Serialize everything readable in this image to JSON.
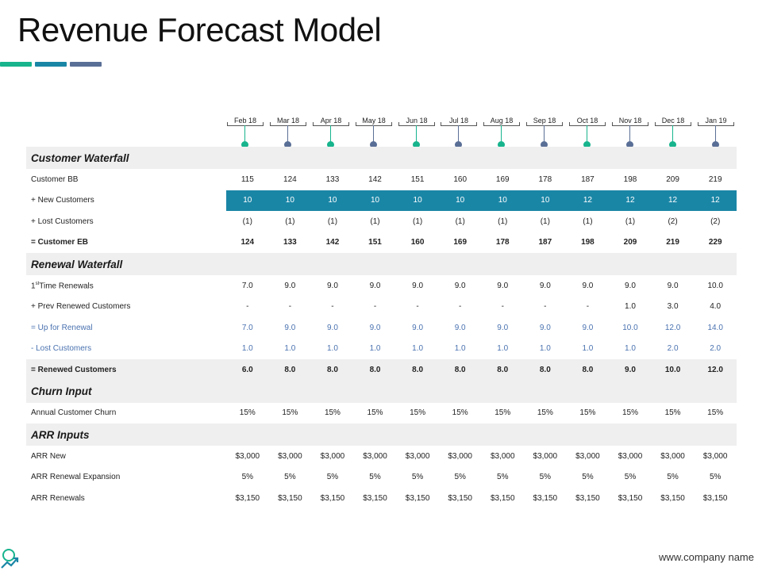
{
  "title": "Revenue Forecast Model",
  "colors": {
    "teal": "#17b48d",
    "blue": "#1a86a6",
    "slate": "#5a6f96",
    "highlight": "#1a86a6"
  },
  "months": [
    "Feb 18",
    "Mar 18",
    "Apr 18",
    "May 18",
    "Jun 18",
    "Jul 18",
    "Aug 18",
    "Sep 18",
    "Oct 18",
    "Nov 18",
    "Dec 18",
    "Jan 19"
  ],
  "sections": [
    {
      "title": "Customer Waterfall",
      "rows": [
        {
          "label": "Customer BB",
          "style": "",
          "values": [
            "115",
            "124",
            "133",
            "142",
            "151",
            "160",
            "169",
            "178",
            "187",
            "198",
            "209",
            "219"
          ]
        },
        {
          "label": "+ New Customers",
          "style": "hl",
          "values": [
            "10",
            "10",
            "10",
            "10",
            "10",
            "10",
            "10",
            "10",
            "12",
            "12",
            "12",
            "12"
          ]
        },
        {
          "label": "+ Lost Customers",
          "style": "",
          "values": [
            "(1)",
            "(1)",
            "(1)",
            "(1)",
            "(1)",
            "(1)",
            "(1)",
            "(1)",
            "(1)",
            "(1)",
            "(2)",
            "(2)"
          ]
        },
        {
          "label": "= Customer EB",
          "style": "bold",
          "values": [
            "124",
            "133",
            "142",
            "151",
            "160",
            "169",
            "178",
            "187",
            "198",
            "209",
            "219",
            "229"
          ]
        }
      ]
    },
    {
      "title": "Renewal Waterfall",
      "rows": [
        {
          "label": "Time  Renewals",
          "prefix": "1",
          "sup": "st",
          "style": "",
          "values": [
            "7.0",
            "9.0",
            "9.0",
            "9.0",
            "9.0",
            "9.0",
            "9.0",
            "9.0",
            "9.0",
            "9.0",
            "9.0",
            "10.0"
          ]
        },
        {
          "label": "+ Prev Renewed Customers",
          "style": "",
          "values": [
            "-",
            "-",
            "-",
            "-",
            "-",
            "-",
            "-",
            "-",
            "-",
            "1.0",
            "3.0",
            "4.0"
          ]
        },
        {
          "label": "= Up  for Renewal",
          "style": "blue",
          "values": [
            "7.0",
            "9.0",
            "9.0",
            "9.0",
            "9.0",
            "9.0",
            "9.0",
            "9.0",
            "9.0",
            "10.0",
            "12.0",
            "14.0"
          ]
        },
        {
          "label": "- Lost Customers",
          "style": "blue",
          "values": [
            "1.0",
            "1.0",
            "1.0",
            "1.0",
            "1.0",
            "1.0",
            "1.0",
            "1.0",
            "1.0",
            "1.0",
            "2.0",
            "2.0"
          ]
        },
        {
          "label": "= Renewed Customers",
          "style": "bold shade",
          "values": [
            "6.0",
            "8.0",
            "8.0",
            "8.0",
            "8.0",
            "8.0",
            "8.0",
            "8.0",
            "8.0",
            "9.0",
            "10.0",
            "12.0"
          ]
        }
      ]
    },
    {
      "title": "Churn Input",
      "rows": [
        {
          "label": "Annual Customer  Churn",
          "style": "",
          "values": [
            "15%",
            "15%",
            "15%",
            "15%",
            "15%",
            "15%",
            "15%",
            "15%",
            "15%",
            "15%",
            "15%",
            "15%"
          ]
        }
      ]
    },
    {
      "title": "ARR Inputs",
      "rows": [
        {
          "label": "ARR New",
          "style": "",
          "values": [
            "$3,000",
            "$3,000",
            "$3,000",
            "$3,000",
            "$3,000",
            "$3,000",
            "$3,000",
            "$3,000",
            "$3,000",
            "$3,000",
            "$3,000",
            "$3,000"
          ]
        },
        {
          "label": "ARR Renewal Expansion",
          "style": "",
          "values": [
            "5%",
            "5%",
            "5%",
            "5%",
            "5%",
            "5%",
            "5%",
            "5%",
            "5%",
            "5%",
            "5%",
            "5%"
          ]
        },
        {
          "label": "ARR Renewals",
          "style": "",
          "values": [
            "$3,150",
            "$3,150",
            "$3,150",
            "$3,150",
            "$3,150",
            "$3,150",
            "$3,150",
            "$3,150",
            "$3,150",
            "$3,150",
            "$3,150",
            "$3,150"
          ]
        }
      ]
    }
  ],
  "footer": "www.company name",
  "icons": {
    "logo": "magnifier-chart-icon"
  }
}
